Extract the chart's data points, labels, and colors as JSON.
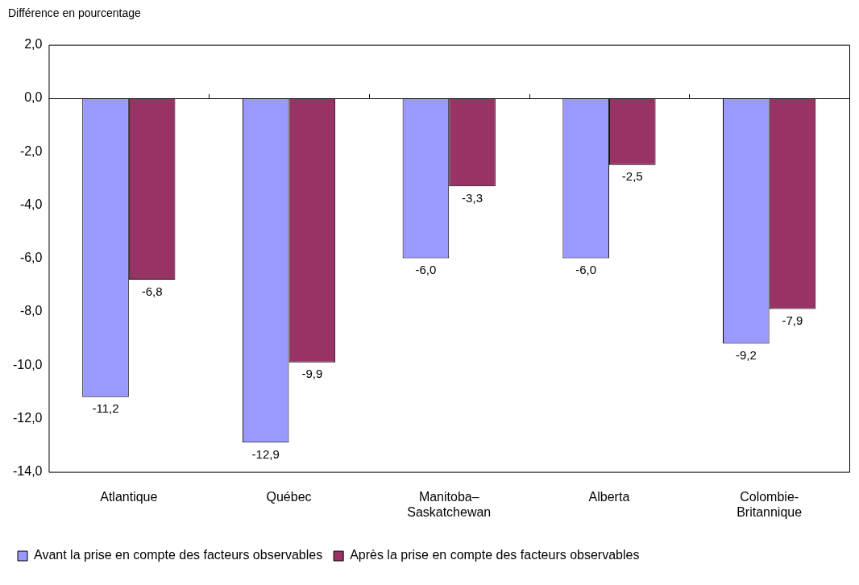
{
  "chart_data": {
    "type": "bar",
    "ylabel": "Différence en pourcentage",
    "categories": [
      "Atlantique",
      "Québec",
      "Manitoba–Saskatchewan",
      "Alberta",
      "Colombie-Britannique"
    ],
    "series": [
      {
        "name": "Avant la prise en compte des facteurs observables",
        "color": "#9999ff",
        "values": [
          -11.2,
          -12.9,
          -6.0,
          -6.0,
          -9.2
        ],
        "value_labels": [
          "-11,2",
          "-12,9",
          "-6,0",
          "-6,0",
          "-9,2"
        ]
      },
      {
        "name": "Après la prise en compte des facteurs observables",
        "color": "#993366",
        "values": [
          -6.8,
          -9.9,
          -3.3,
          -2.5,
          -7.9
        ],
        "value_labels": [
          "-6,8",
          "-9,9",
          "-3,3",
          "-2,5",
          "-7,9"
        ]
      }
    ],
    "ylim": [
      -14,
      2
    ],
    "yticks": [
      {
        "value": -14,
        "label": "-14,0"
      },
      {
        "value": -12,
        "label": "-12,0"
      },
      {
        "value": -10,
        "label": "-10,0"
      },
      {
        "value": -8,
        "label": "-8,0"
      },
      {
        "value": -6,
        "label": "-6,0"
      },
      {
        "value": -4,
        "label": "-4,0"
      },
      {
        "value": -2,
        "label": "-2,0"
      },
      {
        "value": 0,
        "label": "0,0"
      },
      {
        "value": 2,
        "label": "2,0"
      }
    ],
    "ref_lines": [
      {
        "axis": "y",
        "value": 0,
        "color": "#000000"
      }
    ],
    "grid": false,
    "legend": "bottom"
  }
}
